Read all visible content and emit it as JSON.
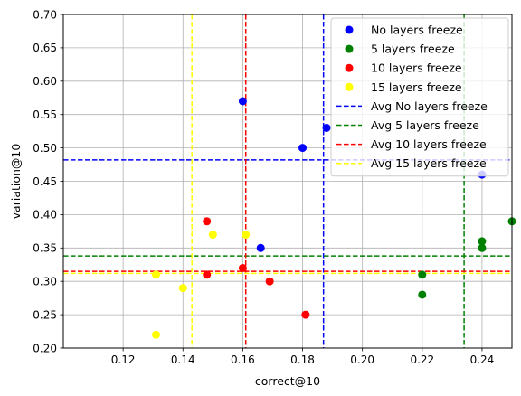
{
  "chart_data": {
    "type": "scatter",
    "xlabel": "correct@10",
    "ylabel": "variation@10",
    "xlim": [
      0.1,
      0.25
    ],
    "ylim": [
      0.2,
      0.7
    ],
    "xticks": [
      "0.12",
      "0.14",
      "0.16",
      "0.18",
      "0.20",
      "0.22",
      "0.24"
    ],
    "yticks": [
      "0.20",
      "0.25",
      "0.30",
      "0.35",
      "0.40",
      "0.45",
      "0.50",
      "0.55",
      "0.60",
      "0.65",
      "0.70"
    ],
    "grid": true,
    "legend_position": "top-right",
    "series": [
      {
        "name": "No layers freeze",
        "color": "#0000ff",
        "points": [
          [
            0.16,
            0.57
          ],
          [
            0.18,
            0.5
          ],
          [
            0.188,
            0.53
          ],
          [
            0.166,
            0.35
          ],
          [
            0.24,
            0.46
          ]
        ]
      },
      {
        "name": "5 layers freeze",
        "color": "#008000",
        "points": [
          [
            0.22,
            0.31
          ],
          [
            0.22,
            0.28
          ],
          [
            0.24,
            0.36
          ],
          [
            0.24,
            0.35
          ],
          [
            0.25,
            0.39
          ]
        ]
      },
      {
        "name": "10 layers freeze",
        "color": "#ff0000",
        "points": [
          [
            0.148,
            0.39
          ],
          [
            0.148,
            0.31
          ],
          [
            0.16,
            0.32
          ],
          [
            0.169,
            0.3
          ],
          [
            0.181,
            0.25
          ]
        ]
      },
      {
        "name": "15 layers freeze",
        "color": "#ffff00",
        "points": [
          [
            0.15,
            0.37
          ],
          [
            0.161,
            0.37
          ],
          [
            0.131,
            0.31
          ],
          [
            0.14,
            0.29
          ],
          [
            0.131,
            0.22
          ]
        ]
      }
    ],
    "averages": [
      {
        "name": "Avg No layers freeze",
        "color": "#0000ff",
        "x": 0.187,
        "y": 0.482
      },
      {
        "name": "Avg 5 layers freeze",
        "color": "#008000",
        "x": 0.234,
        "y": 0.338
      },
      {
        "name": "Avg 10 layers freeze",
        "color": "#ff0000",
        "x": 0.161,
        "y": 0.315
      },
      {
        "name": "Avg 15 layers freeze",
        "color": "#ffff00",
        "x": 0.143,
        "y": 0.312
      }
    ]
  }
}
